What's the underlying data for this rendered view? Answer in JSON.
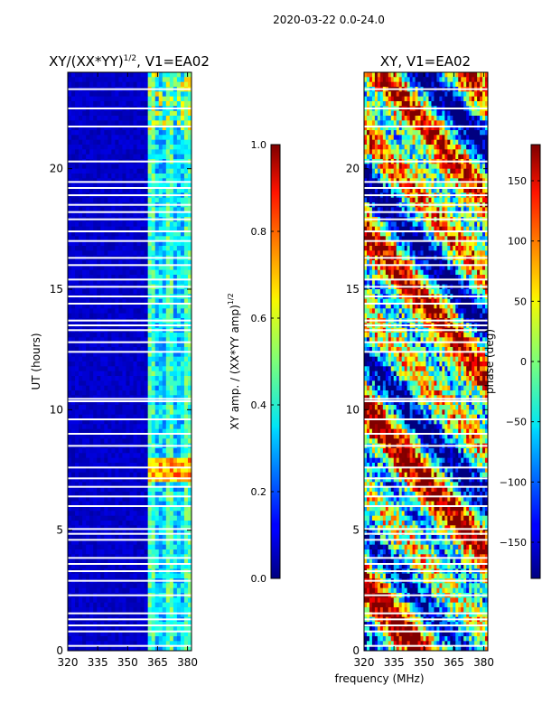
{
  "suptitle": "2020-03-22 0.0-24.0",
  "shared_xlabel": "frequency (MHz)",
  "colors": {
    "background": "#ffffff",
    "gap": "#ffffff",
    "low_fill": "#00008f"
  },
  "chart_data": [
    {
      "type": "heatmap",
      "title_base": "XY/(XX*YY)",
      "title_superscript": "1/2",
      "title_suffix": ", V1=EA02",
      "xlabel": "",
      "ylabel": "UT (hours)",
      "xlim": [
        320,
        382
      ],
      "ylim": [
        0,
        24
      ],
      "xticks": [
        "320",
        "335",
        "350",
        "365",
        "380"
      ],
      "xtick_values": [
        320,
        335,
        350,
        365,
        380
      ],
      "yticks": [
        "0",
        "5",
        "10",
        "15",
        "20"
      ],
      "ytick_values": [
        0,
        5,
        10,
        15,
        20
      ],
      "colormap": "jet",
      "colorbar": {
        "label_base": "XY amp. / (XX*YY amp)",
        "label_superscript": "1/2",
        "range": [
          0.0,
          1.0
        ],
        "ticks": [
          "0.0",
          "0.2",
          "0.4",
          "0.6",
          "0.8",
          "1.0"
        ],
        "tick_values": [
          0.0,
          0.2,
          0.4,
          0.6,
          0.8,
          1.0
        ]
      },
      "description": "Normalized amplitude: low (~0.05) below 360 MHz; channels 360-382 MHz show elevated, banded values (~0.3-0.6), peaking ~0.8 near 7-8 h.",
      "gap_hours": [
        0.2,
        0.8,
        1.05,
        1.3,
        1.55,
        2.3,
        2.9,
        3.3,
        3.6,
        3.85,
        4.6,
        4.85,
        5.05,
        6.0,
        6.4,
        6.8,
        7.15,
        7.6,
        8.5,
        9.0,
        9.6,
        10.35,
        10.45,
        12.4,
        12.8,
        13.3,
        13.5,
        13.7,
        14.4,
        14.7,
        15.1,
        15.4,
        16.0,
        16.3,
        17.0,
        17.4,
        17.9,
        18.2,
        18.5,
        18.9,
        19.2,
        19.45,
        20.3,
        21.75,
        22.5,
        23.3
      ]
    },
    {
      "type": "heatmap",
      "title_base": "XY",
      "title_superscript": "",
      "title_suffix": ", V1=EA02",
      "xlabel": "frequency (MHz)",
      "ylabel": "",
      "xlim": [
        320,
        382
      ],
      "ylim": [
        0,
        24
      ],
      "xticks": [
        "320",
        "335",
        "350",
        "365",
        "380"
      ],
      "xtick_values": [
        320,
        335,
        350,
        365,
        380
      ],
      "yticks": [
        "0",
        "5",
        "10",
        "15",
        "20"
      ],
      "ytick_values": [
        0,
        5,
        10,
        15,
        20
      ],
      "colormap": "jet",
      "colorbar": {
        "label_base": "phase (deg)",
        "label_superscript": "",
        "range": [
          -180,
          180
        ],
        "ticks": [
          "−150",
          "−100",
          "−50",
          "0",
          "50",
          "100",
          "150"
        ],
        "tick_values": [
          -150,
          -100,
          -50,
          0,
          50,
          100,
          150
        ]
      },
      "description": "XY phase across full band, noisy and spanning the full -180 to 180 deg range.",
      "gap_hours": [
        0.2,
        0.8,
        1.05,
        1.3,
        1.55,
        2.3,
        2.9,
        3.3,
        3.6,
        3.85,
        4.6,
        4.85,
        5.05,
        6.0,
        6.4,
        6.8,
        7.15,
        7.6,
        8.5,
        9.0,
        9.6,
        10.35,
        10.45,
        12.4,
        12.8,
        13.3,
        13.5,
        13.7,
        14.4,
        14.7,
        15.1,
        15.4,
        16.0,
        16.3,
        17.0,
        17.4,
        17.9,
        18.2,
        18.5,
        18.9,
        19.2,
        19.45,
        20.3,
        21.75,
        22.5,
        23.3
      ]
    }
  ]
}
